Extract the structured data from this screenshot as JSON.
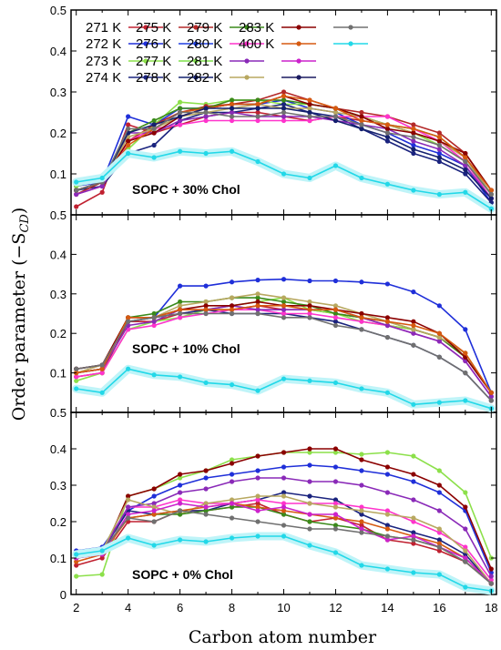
{
  "chart_data": {
    "type": "line",
    "ylabel": "Order parameter (−S",
    "ylabel_sub": "CD",
    "ylabel_close": ")",
    "xlabel": "Carbon atom number",
    "xlim": [
      1.8,
      18.2
    ],
    "x_ticks": [
      "2",
      "4",
      "6",
      "8",
      "10",
      "12",
      "14",
      "16",
      "18"
    ],
    "ylim": [
      0,
      0.5
    ],
    "y_ticks": [
      "0",
      "0.1",
      "0.2",
      "0.3",
      "0.4",
      "0.5"
    ],
    "y_ticks_top": [
      "0.1",
      "0.2",
      "0.3",
      "0.4",
      "0.5"
    ],
    "x": [
      2,
      3,
      4,
      5,
      6,
      7,
      8,
      9,
      10,
      11,
      12,
      13,
      14,
      15,
      16,
      17,
      18
    ],
    "legend": [
      {
        "name": "271 K",
        "color": "#c02030"
      },
      {
        "name": "272 K",
        "color": "#1f2fd9"
      },
      {
        "name": "273 K",
        "color": "#8ce04a"
      },
      {
        "name": "274 K",
        "color": "#1a237e"
      },
      {
        "name": "275 K",
        "color": "#b42828"
      },
      {
        "name": "276 K",
        "color": "#1f3fe0"
      },
      {
        "name": "277 K",
        "color": "#7ee04a"
      },
      {
        "name": "278 K",
        "color": "#14206e"
      },
      {
        "name": "279 K",
        "color": "#3a8a1a"
      },
      {
        "name": "280 K",
        "color": "#ff33cc"
      },
      {
        "name": "281 K",
        "color": "#8a2ab8"
      },
      {
        "name": "282 K",
        "color": "#b8a860"
      },
      {
        "name": "283 K",
        "color": "#8b0000"
      },
      {
        "name": "400 K",
        "color": "#d65a10"
      },
      {
        "name": "",
        "color": "#cc22cc"
      },
      {
        "name": "",
        "color": "#1a1a60"
      },
      {
        "name": "",
        "color": "#707070"
      },
      {
        "name": "",
        "color": "#22d8e8"
      }
    ],
    "panels": [
      {
        "annotation": "SOPC + 30% Chol",
        "series": [
          {
            "color": "#c02030",
            "values": [
              0.02,
              0.055,
              0.22,
              0.2,
              0.22,
              0.24,
              0.25,
              0.25,
              0.24,
              0.23,
              0.24,
              0.23,
              0.22,
              0.2,
              0.18,
              0.14,
              0.05
            ]
          },
          {
            "color": "#1f2fd9",
            "values": [
              0.07,
              0.08,
              0.24,
              0.22,
              0.26,
              0.26,
              0.27,
              0.27,
              0.28,
              0.26,
              0.25,
              0.22,
              0.2,
              0.17,
              0.15,
              0.12,
              0.03
            ]
          },
          {
            "color": "#8ce04a",
            "values": [
              0.07,
              0.085,
              0.16,
              0.22,
              0.275,
              0.27,
              0.28,
              0.28,
              0.27,
              0.27,
              0.26,
              0.24,
              0.22,
              0.2,
              0.17,
              0.13,
              0.05
            ]
          },
          {
            "color": "#1a237e",
            "values": [
              0.06,
              0.07,
              0.15,
              0.17,
              0.23,
              0.25,
              0.25,
              0.26,
              0.27,
              0.25,
              0.24,
              0.21,
              0.18,
              0.15,
              0.13,
              0.1,
              0.03
            ]
          },
          {
            "color": "#b42828",
            "values": [
              0.05,
              0.08,
              0.18,
              0.22,
              0.25,
              0.265,
              0.27,
              0.28,
              0.3,
              0.28,
              0.26,
              0.25,
              0.24,
              0.22,
              0.2,
              0.15,
              0.06
            ]
          },
          {
            "color": "#3a8a1a",
            "values": [
              0.06,
              0.08,
              0.2,
              0.23,
              0.26,
              0.26,
              0.28,
              0.28,
              0.28,
              0.27,
              0.26,
              0.24,
              0.22,
              0.21,
              0.19,
              0.14,
              0.05
            ]
          },
          {
            "color": "#ff33cc",
            "values": [
              0.05,
              0.07,
              0.18,
              0.21,
              0.22,
              0.23,
              0.23,
              0.23,
              0.23,
              0.23,
              0.24,
              0.24,
              0.24,
              0.21,
              0.18,
              0.13,
              0.04
            ]
          },
          {
            "color": "#8a2ab8",
            "values": [
              0.05,
              0.07,
              0.2,
              0.2,
              0.23,
              0.24,
              0.25,
              0.24,
              0.24,
              0.24,
              0.23,
              0.22,
              0.21,
              0.18,
              0.16,
              0.12,
              0.04
            ]
          },
          {
            "color": "#b8a860",
            "values": [
              0.06,
              0.08,
              0.19,
              0.21,
              0.24,
              0.25,
              0.26,
              0.27,
              0.26,
              0.26,
              0.25,
              0.24,
              0.22,
              0.2,
              0.18,
              0.14,
              0.05
            ]
          },
          {
            "color": "#8b0000",
            "values": [
              0.06,
              0.08,
              0.18,
              0.2,
              0.24,
              0.26,
              0.27,
              0.27,
              0.29,
              0.27,
              0.26,
              0.24,
              0.21,
              0.2,
              0.18,
              0.15,
              0.06
            ]
          },
          {
            "color": "#d65a10",
            "values": [
              0.06,
              0.08,
              0.17,
              0.21,
              0.25,
              0.26,
              0.27,
              0.27,
              0.29,
              0.28,
              0.26,
              0.23,
              0.22,
              0.21,
              0.19,
              0.14,
              0.06
            ]
          },
          {
            "color": "#14206e",
            "values": [
              0.06,
              0.08,
              0.2,
              0.22,
              0.24,
              0.26,
              0.26,
              0.26,
              0.26,
              0.25,
              0.23,
              0.21,
              0.19,
              0.16,
              0.14,
              0.11,
              0.04
            ]
          },
          {
            "color": "#707070",
            "values": [
              0.06,
              0.08,
              0.21,
              0.21,
              0.25,
              0.25,
              0.24,
              0.24,
              0.25,
              0.24,
              0.24,
              0.22,
              0.2,
              0.19,
              0.17,
              0.13,
              0.05
            ]
          },
          {
            "color": "#22d8e8",
            "values": [
              0.08,
              0.09,
              0.15,
              0.14,
              0.155,
              0.15,
              0.155,
              0.13,
              0.1,
              0.09,
              0.12,
              0.09,
              0.075,
              0.06,
              0.05,
              0.055,
              0.015
            ]
          }
        ]
      },
      {
        "annotation": "SOPC + 10% Chol",
        "series": [
          {
            "color": "#c02030",
            "values": [
              0.09,
              0.1,
              0.23,
              0.23,
              0.25,
              0.26,
              0.26,
              0.27,
              0.26,
              0.26,
              0.25,
              0.24,
              0.22,
              0.21,
              0.19,
              0.14,
              0.05
            ]
          },
          {
            "color": "#1f2fd9",
            "values": [
              0.1,
              0.11,
              0.24,
              0.24,
              0.32,
              0.32,
              0.33,
              0.335,
              0.337,
              0.333,
              0.333,
              0.33,
              0.325,
              0.305,
              0.27,
              0.21,
              0.05
            ]
          },
          {
            "color": "#8ce04a",
            "values": [
              0.08,
              0.1,
              0.21,
              0.23,
              0.24,
              0.26,
              0.27,
              0.28,
              0.29,
              0.26,
              0.25,
              0.23,
              0.22,
              0.21,
              0.19,
              0.15,
              0.05
            ]
          },
          {
            "color": "#1a237e",
            "values": [
              0.11,
              0.12,
              0.23,
              0.24,
              0.25,
              0.26,
              0.25,
              0.25,
              0.25,
              0.24,
              0.23,
              0.21,
              0.19,
              0.17,
              0.14,
              0.1,
              0.03
            ]
          },
          {
            "color": "#3a8a1a",
            "values": [
              0.1,
              0.11,
              0.24,
              0.25,
              0.28,
              0.28,
              0.29,
              0.29,
              0.28,
              0.27,
              0.25,
              0.24,
              0.23,
              0.21,
              0.19,
              0.14,
              0.05
            ]
          },
          {
            "color": "#ff33cc",
            "values": [
              0.09,
              0.1,
              0.21,
              0.22,
              0.24,
              0.25,
              0.26,
              0.26,
              0.25,
              0.25,
              0.24,
              0.23,
              0.22,
              0.2,
              0.18,
              0.13,
              0.04
            ]
          },
          {
            "color": "#8a2ab8",
            "values": [
              0.1,
              0.11,
              0.22,
              0.23,
              0.26,
              0.26,
              0.27,
              0.26,
              0.26,
              0.26,
              0.26,
              0.24,
              0.22,
              0.2,
              0.18,
              0.13,
              0.04
            ]
          },
          {
            "color": "#b8a860",
            "values": [
              0.1,
              0.12,
              0.24,
              0.24,
              0.27,
              0.28,
              0.29,
              0.3,
              0.29,
              0.28,
              0.27,
              0.25,
              0.23,
              0.21,
              0.19,
              0.15,
              0.05
            ]
          },
          {
            "color": "#8b0000",
            "values": [
              0.11,
              0.12,
              0.24,
              0.24,
              0.26,
              0.27,
              0.27,
              0.28,
              0.27,
              0.27,
              0.26,
              0.25,
              0.24,
              0.23,
              0.2,
              0.14,
              0.05
            ]
          },
          {
            "color": "#d65a10",
            "values": [
              0.1,
              0.11,
              0.24,
              0.24,
              0.26,
              0.26,
              0.26,
              0.27,
              0.27,
              0.26,
              0.26,
              0.24,
              0.23,
              0.22,
              0.2,
              0.15,
              0.05
            ]
          },
          {
            "color": "#707070",
            "values": [
              0.11,
              0.12,
              0.23,
              0.24,
              0.25,
              0.25,
              0.25,
              0.25,
              0.24,
              0.24,
              0.22,
              0.21,
              0.19,
              0.17,
              0.14,
              0.1,
              0.03
            ]
          },
          {
            "color": "#22d8e8",
            "values": [
              0.06,
              0.05,
              0.11,
              0.095,
              0.09,
              0.075,
              0.07,
              0.055,
              0.085,
              0.08,
              0.075,
              0.06,
              0.05,
              0.02,
              0.025,
              0.03,
              0.01
            ]
          }
        ]
      },
      {
        "annotation": "SOPC + 0% Chol",
        "series": [
          {
            "color": "#c02030",
            "values": [
              0.08,
              0.1,
              0.2,
              0.2,
              0.23,
              0.23,
              0.24,
              0.25,
              0.22,
              0.2,
              0.21,
              0.19,
              0.15,
              0.14,
              0.12,
              0.09,
              0.03
            ]
          },
          {
            "color": "#1f2fd9",
            "values": [
              0.12,
              0.13,
              0.23,
              0.27,
              0.3,
              0.32,
              0.33,
              0.34,
              0.35,
              0.355,
              0.35,
              0.34,
              0.33,
              0.31,
              0.28,
              0.23,
              0.06
            ]
          },
          {
            "color": "#8ce04a",
            "values": [
              0.05,
              0.055,
              0.27,
              0.29,
              0.32,
              0.34,
              0.37,
              0.38,
              0.39,
              0.39,
              0.39,
              0.385,
              0.39,
              0.38,
              0.34,
              0.28,
              0.1
            ]
          },
          {
            "color": "#1a237e",
            "values": [
              0.1,
              0.12,
              0.23,
              0.22,
              0.23,
              0.23,
              0.25,
              0.26,
              0.28,
              0.27,
              0.26,
              0.22,
              0.19,
              0.17,
              0.15,
              0.11,
              0.03
            ]
          },
          {
            "color": "#8b0000",
            "values": [
              0.1,
              0.11,
              0.27,
              0.29,
              0.33,
              0.34,
              0.36,
              0.38,
              0.39,
              0.4,
              0.4,
              0.37,
              0.35,
              0.33,
              0.3,
              0.24,
              0.07
            ]
          },
          {
            "color": "#ff33cc",
            "values": [
              0.1,
              0.12,
              0.24,
              0.24,
              0.26,
              0.25,
              0.25,
              0.26,
              0.25,
              0.25,
              0.25,
              0.24,
              0.23,
              0.2,
              0.17,
              0.13,
              0.04
            ]
          },
          {
            "color": "#8a2ab8",
            "values": [
              0.11,
              0.12,
              0.24,
              0.25,
              0.28,
              0.29,
              0.31,
              0.32,
              0.32,
              0.31,
              0.31,
              0.3,
              0.28,
              0.26,
              0.23,
              0.18,
              0.05
            ]
          },
          {
            "color": "#b8a860",
            "values": [
              0.1,
              0.12,
              0.26,
              0.24,
              0.22,
              0.25,
              0.26,
              0.27,
              0.27,
              0.25,
              0.24,
              0.23,
              0.22,
              0.21,
              0.18,
              0.12,
              0.03
            ]
          },
          {
            "color": "#3a8a1a",
            "values": [
              0.1,
              0.12,
              0.21,
              0.22,
              0.22,
              0.23,
              0.24,
              0.24,
              0.22,
              0.2,
              0.19,
              0.18,
              0.16,
              0.15,
              0.13,
              0.09,
              0.03
            ]
          },
          {
            "color": "#d65a10",
            "values": [
              0.09,
              0.11,
              0.21,
              0.22,
              0.23,
              0.24,
              0.25,
              0.24,
              0.23,
              0.22,
              0.21,
              0.2,
              0.18,
              0.16,
              0.14,
              0.1,
              0.03
            ]
          },
          {
            "color": "#cc22cc",
            "values": [
              0.1,
              0.11,
              0.22,
              0.23,
              0.25,
              0.24,
              0.25,
              0.23,
              0.24,
              0.22,
              0.22,
              0.18,
              0.15,
              0.16,
              0.13,
              0.1,
              0.03
            ]
          },
          {
            "color": "#707070",
            "values": [
              0.11,
              0.12,
              0.21,
              0.2,
              0.23,
              0.22,
              0.21,
              0.2,
              0.19,
              0.18,
              0.18,
              0.17,
              0.16,
              0.15,
              0.13,
              0.09,
              0.03
            ]
          },
          {
            "color": "#22d8e8",
            "values": [
              0.11,
              0.12,
              0.155,
              0.135,
              0.15,
              0.145,
              0.155,
              0.16,
              0.16,
              0.135,
              0.115,
              0.08,
              0.07,
              0.06,
              0.055,
              0.02,
              0.01
            ]
          }
        ]
      }
    ]
  }
}
